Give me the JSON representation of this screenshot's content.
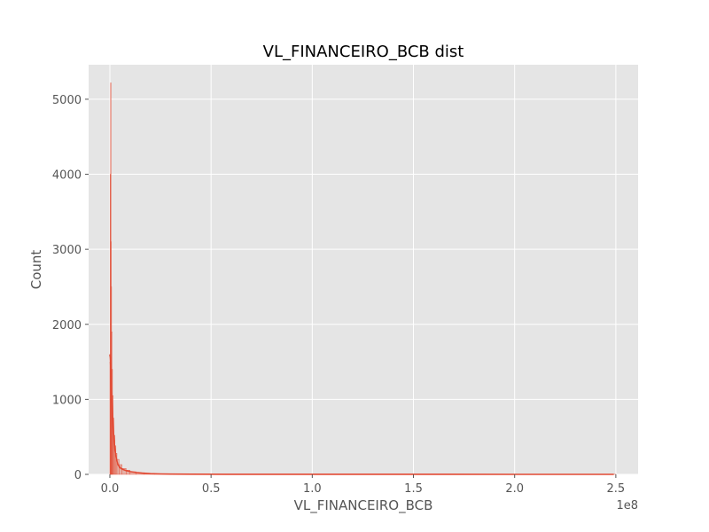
{
  "chart_data": {
    "type": "histogram",
    "title": "VL_FINANCEIRO_BCB dist",
    "xlabel": "VL_FINANCEIRO_BCB",
    "ylabel": "Count",
    "x_offset_text": "1e8",
    "xlim": [
      -10500000,
      261000000
    ],
    "ylim": [
      0,
      5460
    ],
    "x_ticks": [
      0,
      50000000,
      100000000,
      150000000,
      200000000,
      250000000
    ],
    "x_tick_labels": [
      "0.0",
      "0.5",
      "1.0",
      "1.5",
      "2.0",
      "2.5"
    ],
    "y_ticks": [
      0,
      1000,
      2000,
      3000,
      4000,
      5000
    ],
    "y_tick_labels": [
      "0",
      "1000",
      "2000",
      "3000",
      "4000",
      "5000"
    ],
    "grid": true,
    "style": "ggplot",
    "bins": [
      {
        "x0": 0,
        "x1": 150000,
        "count": 1500
      },
      {
        "x0": 150000,
        "x1": 300000,
        "count": 4000
      },
      {
        "x0": 300000,
        "x1": 450000,
        "count": 5220
      },
      {
        "x0": 450000,
        "x1": 600000,
        "count": 3100
      },
      {
        "x0": 600000,
        "x1": 800000,
        "count": 2500
      },
      {
        "x0": 800000,
        "x1": 1000000,
        "count": 1900
      },
      {
        "x0": 1000000,
        "x1": 1300000,
        "count": 1400
      },
      {
        "x0": 1300000,
        "x1": 1600000,
        "count": 1050
      },
      {
        "x0": 1600000,
        "x1": 2000000,
        "count": 750
      },
      {
        "x0": 2000000,
        "x1": 2500000,
        "count": 520
      },
      {
        "x0": 2500000,
        "x1": 3000000,
        "count": 380
      },
      {
        "x0": 3000000,
        "x1": 3500000,
        "count": 280
      },
      {
        "x0": 3500000,
        "x1": 4500000,
        "count": 200
      },
      {
        "x0": 4500000,
        "x1": 6000000,
        "count": 130
      },
      {
        "x0": 6000000,
        "x1": 8000000,
        "count": 80
      },
      {
        "x0": 8000000,
        "x1": 10000000,
        "count": 55
      },
      {
        "x0": 10000000,
        "x1": 13000000,
        "count": 35
      },
      {
        "x0": 13000000,
        "x1": 17000000,
        "count": 22
      },
      {
        "x0": 17000000,
        "x1": 22000000,
        "count": 14
      },
      {
        "x0": 22000000,
        "x1": 30000000,
        "count": 8
      },
      {
        "x0": 30000000,
        "x1": 50000000,
        "count": 4
      },
      {
        "x0": 50000000,
        "x1": 100000000,
        "count": 2
      },
      {
        "x0": 100000000,
        "x1": 250000000,
        "count": 1
      }
    ],
    "kde": [
      [
        0,
        1600
      ],
      [
        200000,
        1560
      ],
      [
        400000,
        1430
      ],
      [
        600000,
        1260
      ],
      [
        800000,
        1100
      ],
      [
        1000000,
        960
      ],
      [
        1300000,
        790
      ],
      [
        1600000,
        640
      ],
      [
        2000000,
        470
      ],
      [
        2500000,
        330
      ],
      [
        3000000,
        240
      ],
      [
        3500000,
        175
      ],
      [
        4000000,
        130
      ],
      [
        5000000,
        90
      ],
      [
        6000000,
        70
      ],
      [
        8000000,
        50
      ],
      [
        10000000,
        37
      ],
      [
        13000000,
        25
      ],
      [
        16000000,
        17
      ],
      [
        20000000,
        10
      ],
      [
        25000000,
        6
      ],
      [
        30000000,
        4
      ],
      [
        40000000,
        2
      ],
      [
        60000000,
        1
      ],
      [
        100000000,
        0.5
      ],
      [
        150000000,
        0.2
      ],
      [
        200000000,
        0.1
      ],
      [
        249000000,
        0
      ]
    ],
    "colors": {
      "plot_background": "#e5e5e5",
      "grid": "#ffffff",
      "bar_fill": "#e5a89c",
      "bar_edge": "#e24a33",
      "kde_line": "#e24a33",
      "tick_mark": "#555555"
    }
  }
}
